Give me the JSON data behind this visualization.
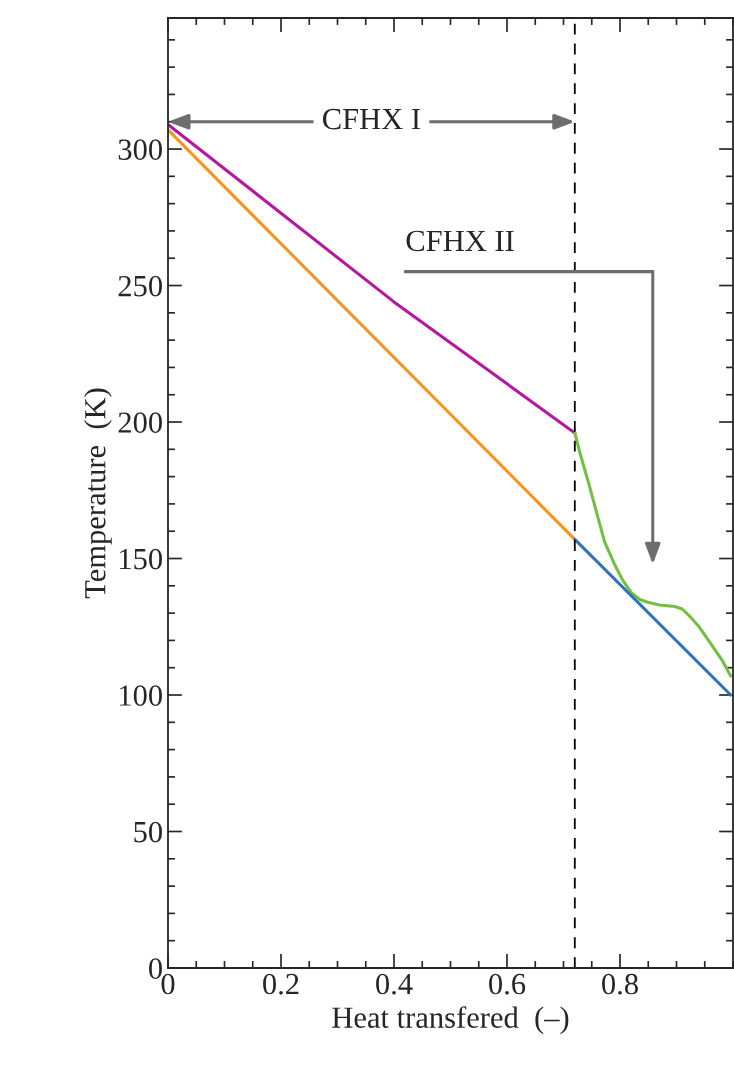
{
  "chart_data": {
    "type": "line",
    "xlabel": "Heat transfered  (–)",
    "ylabel": "Temperature  (K)",
    "xlim": [
      0,
      1.0
    ],
    "ylim": [
      0,
      348
    ],
    "xticks": [
      0,
      0.2,
      0.4,
      0.6,
      0.8
    ],
    "yticks": [
      0,
      50,
      100,
      150,
      200,
      250,
      300
    ],
    "grid": false,
    "marker": "none",
    "line_style": "solid",
    "series": [
      {
        "color": "#b5179e",
        "x": [
          0,
          0.4,
          0.72
        ],
        "values": [
          309,
          244,
          196
        ]
      },
      {
        "color": "#f7941d",
        "x": [
          0,
          0.72
        ],
        "values": [
          307,
          157
        ]
      },
      {
        "color": "#72bf44",
        "x": [
          0.72,
          0.73,
          0.744,
          0.761,
          0.773,
          0.79,
          0.805,
          0.82,
          0.835,
          0.849,
          0.87,
          0.897,
          0.91,
          0.925,
          0.94,
          0.96,
          0.98,
          0.996
        ],
        "values": [
          196,
          188,
          178,
          165,
          156,
          148,
          142,
          137.5,
          135,
          134,
          133,
          132.4,
          131.5,
          128.5,
          125,
          119,
          113,
          107
        ]
      },
      {
        "color": "#2f75b5",
        "x": [
          0.72,
          0.996
        ],
        "values": [
          157,
          100
        ]
      }
    ],
    "ref_lines": [
      {
        "axis": "x",
        "value": 0.72,
        "color": "#000000",
        "line_style": "dashed"
      }
    ],
    "annotations": [
      {
        "text": "CFHX I",
        "x": 0.72,
        "y": 310
      },
      "CFHX II"
    ]
  }
}
